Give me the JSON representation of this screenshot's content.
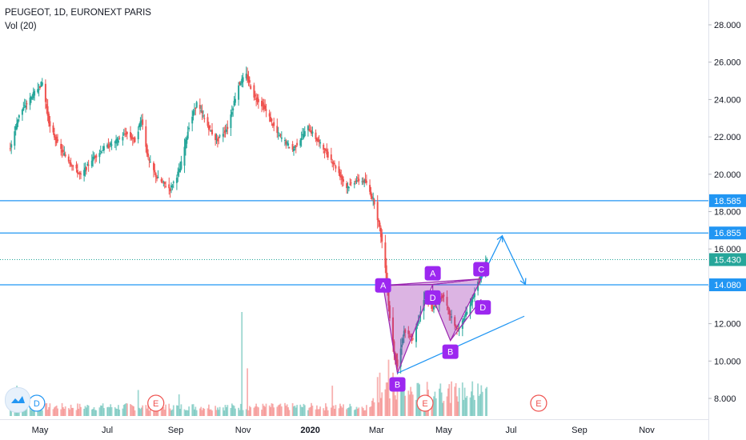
{
  "header": {
    "symbol_line": "PEUGEOT, 1D, EURONEXT PARIS",
    "volume_line": "Vol (20)"
  },
  "colors": {
    "up": "#26a69a",
    "down": "#ef5350",
    "level_line": "#2196f3",
    "current_price": "#26a69a",
    "pattern_fill": "#9c27b0",
    "pattern_point": "#9c27f0",
    "arrow": "#2196f3",
    "event_e": "#ef5350",
    "event_d": "#2196f3"
  },
  "chart_data": {
    "type": "candlestick",
    "y_ticks": [
      "8.000",
      "10.000",
      "12.000",
      "14.000",
      "16.000",
      "18.000",
      "20.000",
      "22.000",
      "24.000",
      "26.000",
      "28.000"
    ],
    "ylim": [
      7.0,
      29.0
    ],
    "x_ticks": [
      "May",
      "Jul",
      "Sep",
      "Nov",
      "2020",
      "Mar",
      "May",
      "Jul",
      "Sep",
      "Nov"
    ],
    "x_tick_dates": [
      "2019-05-01",
      "2019-07-01",
      "2019-09-01",
      "2019-11-01",
      "2020-01-01",
      "2020-03-01",
      "2020-05-01",
      "2020-07-01",
      "2020-09-01",
      "2020-11-01"
    ],
    "xlim": [
      "2019-04-04",
      "2020-12-31"
    ],
    "price_path": [
      [
        "2019-04-04",
        21.4
      ],
      [
        "2019-04-12",
        23.2
      ],
      [
        "2019-04-24",
        24.2
      ],
      [
        "2019-05-03",
        24.9
      ],
      [
        "2019-05-10",
        22.5
      ],
      [
        "2019-05-20",
        21.3
      ],
      [
        "2019-05-30",
        20.5
      ],
      [
        "2019-06-07",
        19.9
      ],
      [
        "2019-06-17",
        20.8
      ],
      [
        "2019-06-28",
        21.4
      ],
      [
        "2019-07-08",
        21.7
      ],
      [
        "2019-07-18",
        22.2
      ],
      [
        "2019-07-26",
        21.8
      ],
      [
        "2019-08-01",
        23.0
      ],
      [
        "2019-08-07",
        20.8
      ],
      [
        "2019-08-15",
        19.8
      ],
      [
        "2019-08-27",
        19.2
      ],
      [
        "2019-09-05",
        20.3
      ],
      [
        "2019-09-13",
        22.6
      ],
      [
        "2019-09-20",
        23.8
      ],
      [
        "2019-09-30",
        22.6
      ],
      [
        "2019-10-08",
        21.8
      ],
      [
        "2019-10-18",
        22.5
      ],
      [
        "2019-10-28",
        24.8
      ],
      [
        "2019-11-04",
        25.3
      ],
      [
        "2019-11-11",
        24.2
      ],
      [
        "2019-11-20",
        23.6
      ],
      [
        "2019-12-02",
        22.2
      ],
      [
        "2019-12-16",
        21.3
      ],
      [
        "2019-12-30",
        22.5
      ],
      [
        "2020-01-10",
        21.6
      ],
      [
        "2020-01-22",
        20.6
      ],
      [
        "2020-02-03",
        19.3
      ],
      [
        "2020-02-12",
        19.7
      ],
      [
        "2020-02-20",
        19.6
      ],
      [
        "2020-02-28",
        18.5
      ],
      [
        "2020-03-04",
        17.1
      ],
      [
        "2020-03-07",
        16.0
      ],
      [
        "2020-03-10",
        14.5
      ],
      [
        "2020-03-13",
        12.3
      ],
      [
        "2020-03-17",
        10.5
      ],
      [
        "2020-03-20",
        9.7
      ],
      [
        "2020-03-26",
        11.6
      ],
      [
        "2020-04-03",
        11.1
      ],
      [
        "2020-04-14",
        13.6
      ],
      [
        "2020-04-21",
        12.8
      ],
      [
        "2020-04-30",
        13.5
      ],
      [
        "2020-05-07",
        12.4
      ],
      [
        "2020-05-14",
        11.6
      ],
      [
        "2020-05-22",
        12.6
      ],
      [
        "2020-06-02",
        14.3
      ],
      [
        "2020-06-09",
        15.4
      ]
    ],
    "volume_max": 48,
    "volume_spikes": [
      [
        "2019-04-10",
        14
      ],
      [
        "2019-07-29",
        12
      ],
      [
        "2019-09-04",
        10
      ],
      [
        "2019-10-31",
        48
      ],
      [
        "2019-11-05",
        22
      ],
      [
        "2020-01-21",
        14
      ],
      [
        "2020-03-02",
        18
      ],
      [
        "2020-03-04",
        20
      ],
      [
        "2020-03-07",
        29
      ],
      [
        "2020-03-12",
        26
      ],
      [
        "2020-03-16",
        20
      ],
      [
        "2020-03-23",
        15
      ],
      [
        "2020-04-28",
        15
      ],
      [
        "2020-05-15",
        13
      ],
      [
        "2020-05-27",
        16
      ],
      [
        "2020-06-01",
        15
      ]
    ],
    "horizontal_levels": [
      {
        "value": 18.585,
        "label": "18.585"
      },
      {
        "value": 16.855,
        "label": "16.855"
      },
      {
        "value": 14.08,
        "label": "14.080"
      }
    ],
    "current_price": {
      "value": 15.43,
      "label": "15.430"
    },
    "harmonic_points": [
      {
        "label": "A",
        "date": "2020-03-07",
        "price": 14.05
      },
      {
        "label": "B",
        "date": "2020-03-20",
        "price": 9.35
      },
      {
        "label": "A",
        "date": "2020-04-21",
        "price": 14.1
      },
      {
        "label": "D",
        "date": "2020-04-21",
        "price": 13.4
      },
      {
        "label": "B",
        "date": "2020-05-07",
        "price": 11.1
      },
      {
        "label": "C",
        "date": "2020-06-04",
        "price": 14.4
      },
      {
        "label": "D",
        "date": "2020-06-04",
        "price": 13.3
      }
    ],
    "trendline": {
      "from": [
        "2020-03-20",
        9.35
      ],
      "to": [
        "2020-07-13",
        12.4
      ]
    },
    "projection_arrow": [
      [
        "2020-06-04",
        14.4
      ],
      [
        "2020-06-23",
        16.7
      ],
      [
        "2020-07-14",
        14.1
      ]
    ],
    "events": [
      {
        "label": "D",
        "date": "2019-04-28"
      },
      {
        "label": "E",
        "date": "2019-08-14"
      },
      {
        "label": "E",
        "date": "2020-04-14"
      },
      {
        "label": "E",
        "date": "2020-07-26"
      }
    ]
  }
}
